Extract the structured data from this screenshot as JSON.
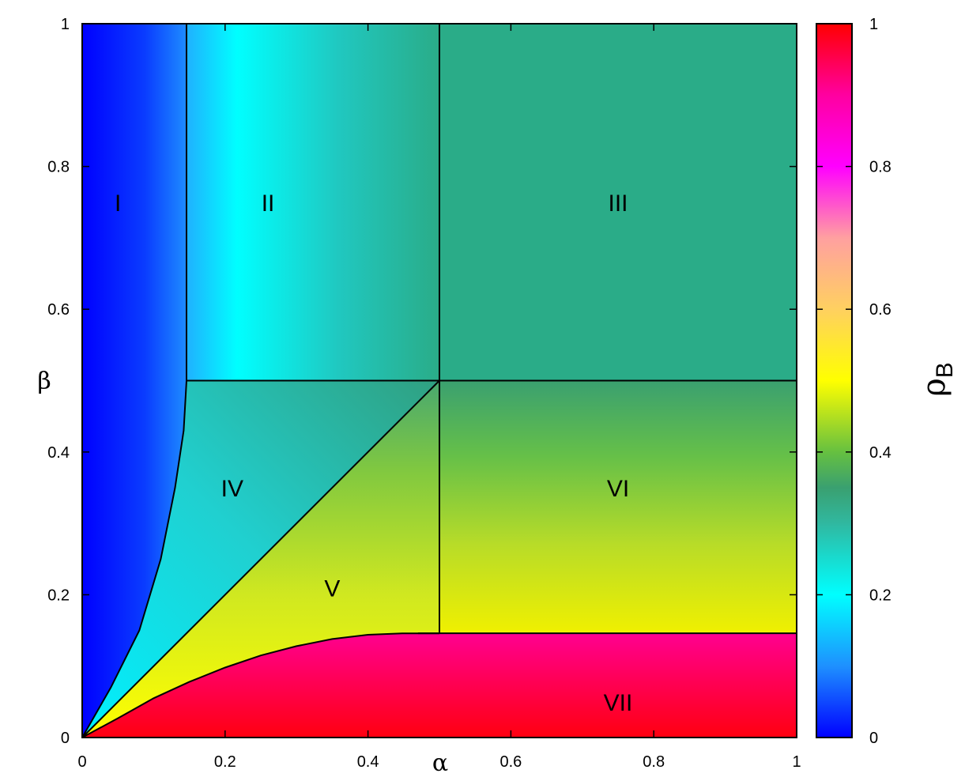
{
  "chart_data": {
    "type": "heatmap",
    "title": "",
    "xlabel": "α",
    "ylabel": "β",
    "xlim": [
      0,
      1
    ],
    "ylim": [
      0,
      1
    ],
    "x_ticks": [
      "0",
      "0.2",
      "0.4",
      "0.6",
      "0.8",
      "1"
    ],
    "y_ticks": [
      "0",
      "0.2",
      "0.4",
      "0.6",
      "0.8",
      "1"
    ],
    "colorbar": {
      "label": "ρ",
      "label_subscript": "B",
      "range": [
        0,
        1
      ],
      "ticks": [
        "0",
        "0.2",
        "0.4",
        "0.6",
        "0.8",
        "1"
      ],
      "colormap": [
        {
          "v": 0.0,
          "color": "#0000ff"
        },
        {
          "v": 0.1,
          "color": "#1e90ff"
        },
        {
          "v": 0.2,
          "color": "#00ffff"
        },
        {
          "v": 0.3,
          "color": "#30b8a0"
        },
        {
          "v": 0.35,
          "color": "#3aa070"
        },
        {
          "v": 0.4,
          "color": "#66c040"
        },
        {
          "v": 0.5,
          "color": "#ffff00"
        },
        {
          "v": 0.6,
          "color": "#ffd060"
        },
        {
          "v": 0.7,
          "color": "#ffa0a0"
        },
        {
          "v": 0.8,
          "color": "#ff00ff"
        },
        {
          "v": 0.9,
          "color": "#ff00a0"
        },
        {
          "v": 1.0,
          "color": "#ff0000"
        }
      ]
    },
    "regions": [
      {
        "label": "I",
        "label_at": [
          0.05,
          0.75
        ],
        "rho": "0 to 0.15 (increasing with α)"
      },
      {
        "label": "II",
        "label_at": [
          0.26,
          0.75
        ],
        "rho": "0.15 to 0.33 (increasing with α)"
      },
      {
        "label": "III",
        "label_at": [
          0.75,
          0.75
        ],
        "rho": 0.33
      },
      {
        "label": "IV",
        "label_at": [
          0.21,
          0.35
        ],
        "rho": "0.2 to 0.33"
      },
      {
        "label": "V",
        "label_at": [
          0.35,
          0.21
        ],
        "rho": "0.35 to 0.5"
      },
      {
        "label": "VI",
        "label_at": [
          0.75,
          0.35
        ],
        "rho": "0.33 to 0.5 (decreasing with β)"
      },
      {
        "label": "VII",
        "label_at": [
          0.75,
          0.05
        ],
        "rho": "0.9 to 1"
      }
    ],
    "boundaries": [
      {
        "name": "alpha_c",
        "type": "vertical",
        "x": 0.146,
        "y": [
          0.5,
          1
        ]
      },
      {
        "name": "alpha_half",
        "type": "vertical",
        "x": 0.5,
        "y": [
          0.146,
          1
        ]
      },
      {
        "name": "beta_half",
        "type": "horizontal",
        "y": 0.5,
        "x": [
          0.146,
          1
        ]
      },
      {
        "name": "beta_c",
        "type": "horizontal",
        "y": 0.146,
        "x": [
          0.47,
          1
        ]
      },
      {
        "name": "diagonal",
        "type": "line",
        "from": [
          0,
          0
        ],
        "to": [
          0.5,
          0.5
        ]
      },
      {
        "name": "curve_I_IV",
        "type": "curve",
        "points": [
          [
            0,
            0
          ],
          [
            0.04,
            0.07
          ],
          [
            0.08,
            0.15
          ],
          [
            0.11,
            0.25
          ],
          [
            0.13,
            0.35
          ],
          [
            0.142,
            0.43
          ],
          [
            0.146,
            0.5
          ]
        ]
      },
      {
        "name": "curve_V_VII",
        "type": "curve",
        "points": [
          [
            0,
            0
          ],
          [
            0.05,
            0.027
          ],
          [
            0.1,
            0.055
          ],
          [
            0.15,
            0.078
          ],
          [
            0.2,
            0.098
          ],
          [
            0.25,
            0.115
          ],
          [
            0.3,
            0.128
          ],
          [
            0.35,
            0.138
          ],
          [
            0.4,
            0.144
          ],
          [
            0.45,
            0.146
          ],
          [
            0.5,
            0.146
          ]
        ]
      }
    ]
  }
}
